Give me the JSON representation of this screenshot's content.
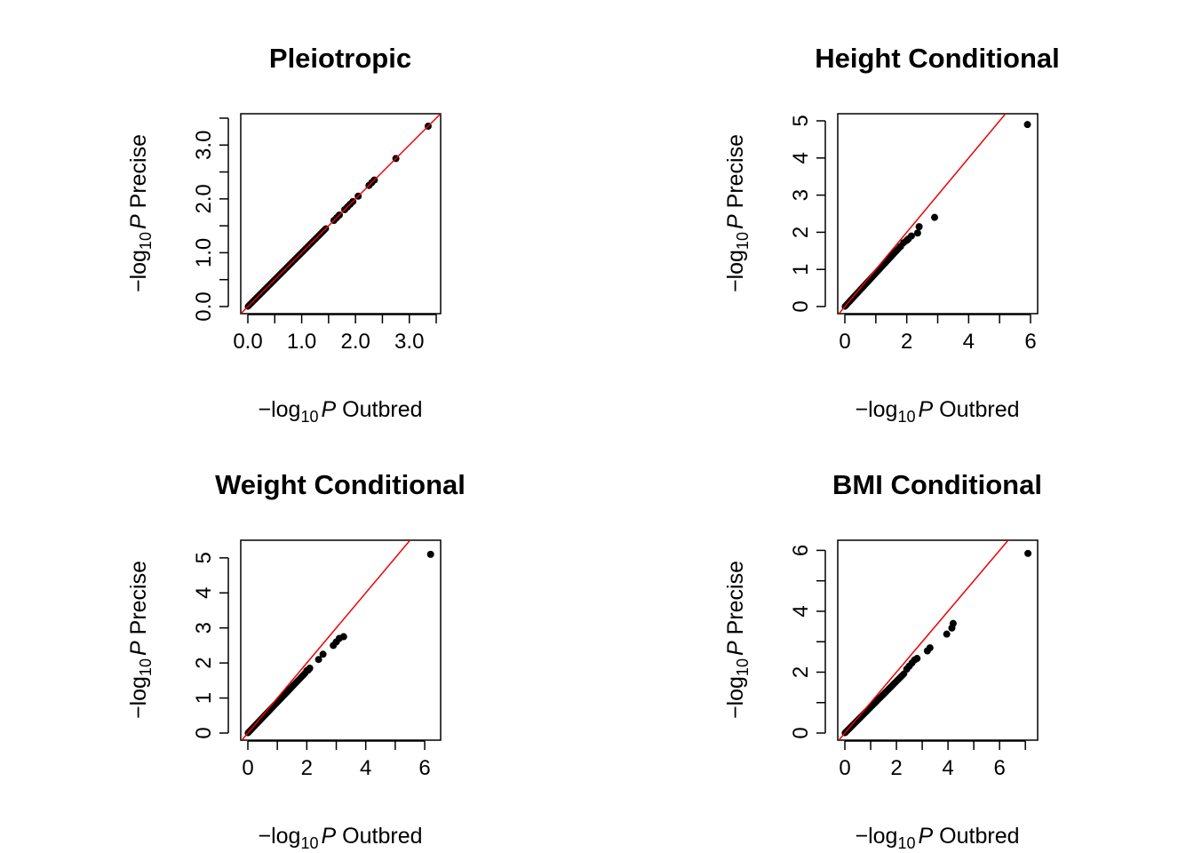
{
  "chart_data": [
    {
      "type": "scatter",
      "title": "Pleiotropic",
      "xlabel": "Outbred",
      "ylabel": "Precise",
      "label_prefix": "−log",
      "label_sub": "10",
      "label_var": "P",
      "xlim": [
        0,
        3.45
      ],
      "ylim": [
        0,
        3.45
      ],
      "xticks": [
        0,
        0.5,
        1,
        1.5,
        2,
        2.5,
        3,
        3.5
      ],
      "xtick_labels": [
        "0.0",
        "",
        "1.0",
        "",
        "2.0",
        "",
        "3.0",
        ""
      ],
      "yticks": [
        0,
        0.5,
        1,
        1.5,
        2,
        2.5,
        3,
        3.5
      ],
      "ytick_labels": [
        "0.0",
        "",
        "1.0",
        "",
        "2.0",
        "",
        "3.0",
        ""
      ],
      "reference_line": "y = x",
      "reference_color": "#ee0000",
      "point_color": "#000000",
      "bulk": {
        "max": 1.45,
        "slope": 1.0
      },
      "points": [
        {
          "x": 1.6,
          "y": 1.6
        },
        {
          "x": 1.65,
          "y": 1.65
        },
        {
          "x": 1.7,
          "y": 1.7
        },
        {
          "x": 1.8,
          "y": 1.8
        },
        {
          "x": 1.85,
          "y": 1.85
        },
        {
          "x": 1.9,
          "y": 1.9
        },
        {
          "x": 1.95,
          "y": 1.95
        },
        {
          "x": 2.05,
          "y": 2.05
        },
        {
          "x": 2.25,
          "y": 2.25
        },
        {
          "x": 2.3,
          "y": 2.3
        },
        {
          "x": 2.35,
          "y": 2.35
        },
        {
          "x": 2.75,
          "y": 2.75
        },
        {
          "x": 3.35,
          "y": 3.35
        }
      ]
    },
    {
      "type": "scatter",
      "title": "Height Conditional",
      "xlabel": "Outbred",
      "ylabel": "Precise",
      "label_prefix": "−log",
      "label_sub": "10",
      "label_var": "P",
      "xlim": [
        0,
        6.0
      ],
      "ylim": [
        0,
        5.0
      ],
      "xticks": [
        0,
        1,
        2,
        3,
        4,
        5,
        6
      ],
      "xtick_labels": [
        "0",
        "",
        "2",
        "",
        "4",
        "",
        "6"
      ],
      "yticks": [
        0,
        1,
        2,
        3,
        4,
        5
      ],
      "ytick_labels": [
        "0",
        "1",
        "2",
        "3",
        "4",
        "5"
      ],
      "reference_line": "y = x",
      "reference_color": "#ee0000",
      "point_color": "#000000",
      "bulk": {
        "max": 1.75,
        "slope": 0.9
      },
      "points": [
        {
          "x": 1.8,
          "y": 1.62
        },
        {
          "x": 1.9,
          "y": 1.72
        },
        {
          "x": 2.0,
          "y": 1.78
        },
        {
          "x": 2.05,
          "y": 1.82
        },
        {
          "x": 2.15,
          "y": 1.9
        },
        {
          "x": 2.35,
          "y": 1.98
        },
        {
          "x": 2.4,
          "y": 2.15
        },
        {
          "x": 2.9,
          "y": 2.4
        },
        {
          "x": 5.9,
          "y": 4.9
        }
      ]
    },
    {
      "type": "scatter",
      "title": "Weight Conditional",
      "xlabel": "Outbred",
      "ylabel": "Precise",
      "label_prefix": "−log",
      "label_sub": "10",
      "label_var": "P",
      "xlim": [
        0,
        6.3
      ],
      "ylim": [
        0,
        5.3
      ],
      "xticks": [
        0,
        1,
        2,
        3,
        4,
        5,
        6
      ],
      "xtick_labels": [
        "0",
        "",
        "2",
        "",
        "4",
        "",
        "6"
      ],
      "yticks": [
        0,
        1,
        2,
        3,
        4,
        5
      ],
      "ytick_labels": [
        "0",
        "1",
        "2",
        "3",
        "4",
        "5"
      ],
      "reference_line": "y = x",
      "reference_color": "#ee0000",
      "point_color": "#000000",
      "bulk": {
        "max": 1.95,
        "slope": 0.88
      },
      "points": [
        {
          "x": 2.0,
          "y": 1.78
        },
        {
          "x": 2.05,
          "y": 1.8
        },
        {
          "x": 2.1,
          "y": 1.85
        },
        {
          "x": 2.4,
          "y": 2.1
        },
        {
          "x": 2.55,
          "y": 2.25
        },
        {
          "x": 2.9,
          "y": 2.5
        },
        {
          "x": 3.0,
          "y": 2.6
        },
        {
          "x": 3.1,
          "y": 2.7
        },
        {
          "x": 3.25,
          "y": 2.75
        },
        {
          "x": 6.2,
          "y": 5.1
        }
      ]
    },
    {
      "type": "scatter",
      "title": "BMI Conditional",
      "xlabel": "Outbred",
      "ylabel": "Precise",
      "label_prefix": "−log",
      "label_sub": "10",
      "label_var": "P",
      "xlim": [
        0,
        7.2
      ],
      "ylim": [
        0,
        6.1
      ],
      "xticks": [
        0,
        1,
        2,
        3,
        4,
        5,
        6,
        7
      ],
      "xtick_labels": [
        "0",
        "",
        "2",
        "",
        "4",
        "",
        "6",
        ""
      ],
      "yticks": [
        0,
        1,
        2,
        3,
        4,
        5,
        6
      ],
      "ytick_labels": [
        "0",
        "",
        "2",
        "",
        "4",
        "",
        "6"
      ],
      "reference_line": "y = x",
      "reference_color": "#ee0000",
      "point_color": "#000000",
      "bulk": {
        "max": 2.3,
        "slope": 0.85
      },
      "points": [
        {
          "x": 2.4,
          "y": 2.1
        },
        {
          "x": 2.5,
          "y": 2.2
        },
        {
          "x": 2.6,
          "y": 2.3
        },
        {
          "x": 2.7,
          "y": 2.4
        },
        {
          "x": 2.8,
          "y": 2.45
        },
        {
          "x": 3.2,
          "y": 2.7
        },
        {
          "x": 3.3,
          "y": 2.8
        },
        {
          "x": 3.95,
          "y": 3.25
        },
        {
          "x": 4.15,
          "y": 3.45
        },
        {
          "x": 4.2,
          "y": 3.6
        },
        {
          "x": 7.1,
          "y": 5.9
        }
      ]
    }
  ]
}
